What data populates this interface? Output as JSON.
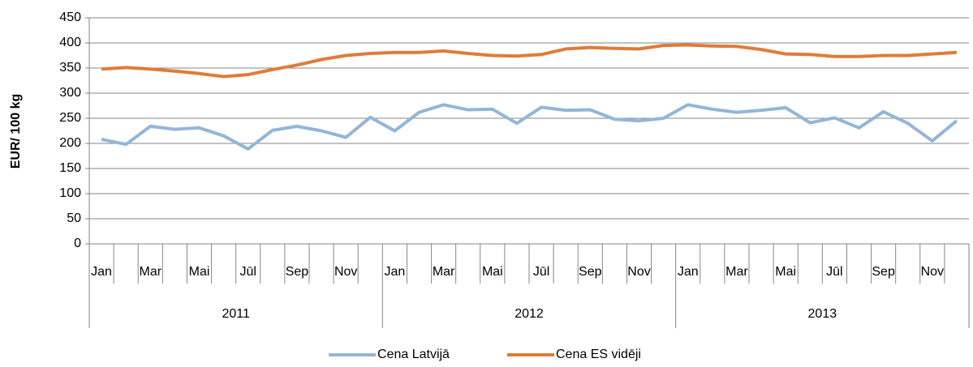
{
  "chart_data": {
    "type": "line",
    "ylabel": "EUR/ 100 kg",
    "categories": [
      "Jan",
      null,
      "Mar",
      null,
      "Mai",
      null,
      "Jūl",
      null,
      "Sep",
      null,
      "Nov",
      null,
      "Jan",
      null,
      "Mar",
      null,
      "Mai",
      null,
      "Jūl",
      null,
      "Sep",
      null,
      "Nov",
      null,
      "Jan",
      null,
      "Mar",
      null,
      "Mai",
      null,
      "Jūl",
      null,
      "Sep",
      null,
      "Nov",
      null
    ],
    "years": [
      "2011",
      "2012",
      "2013"
    ],
    "series": [
      {
        "name": "Cena Latvijā",
        "color": "#93b6d8",
        "values": [
          208,
          198,
          234,
          228,
          231,
          215,
          189,
          226,
          234,
          225,
          212,
          252,
          225,
          262,
          277,
          267,
          268,
          240,
          272,
          266,
          267,
          248,
          245,
          250,
          277,
          268,
          262,
          266,
          271,
          241,
          251,
          231,
          263,
          240,
          205,
          245
        ]
      },
      {
        "name": "Cena ES vidēji",
        "color": "#e07b39",
        "values": [
          348,
          351,
          348,
          344,
          339,
          333,
          337,
          347,
          356,
          367,
          375,
          379,
          381,
          381,
          384,
          379,
          375,
          374,
          377,
          388,
          391,
          389,
          388,
          395,
          396,
          394,
          393,
          387,
          378,
          377,
          373,
          373,
          375,
          375,
          378,
          381
        ]
      }
    ],
    "ylim": [
      0,
      450
    ],
    "yticks": [
      0,
      50,
      100,
      150,
      200,
      250,
      300,
      350,
      400,
      450
    ],
    "grid": true,
    "legend": "bottom"
  }
}
